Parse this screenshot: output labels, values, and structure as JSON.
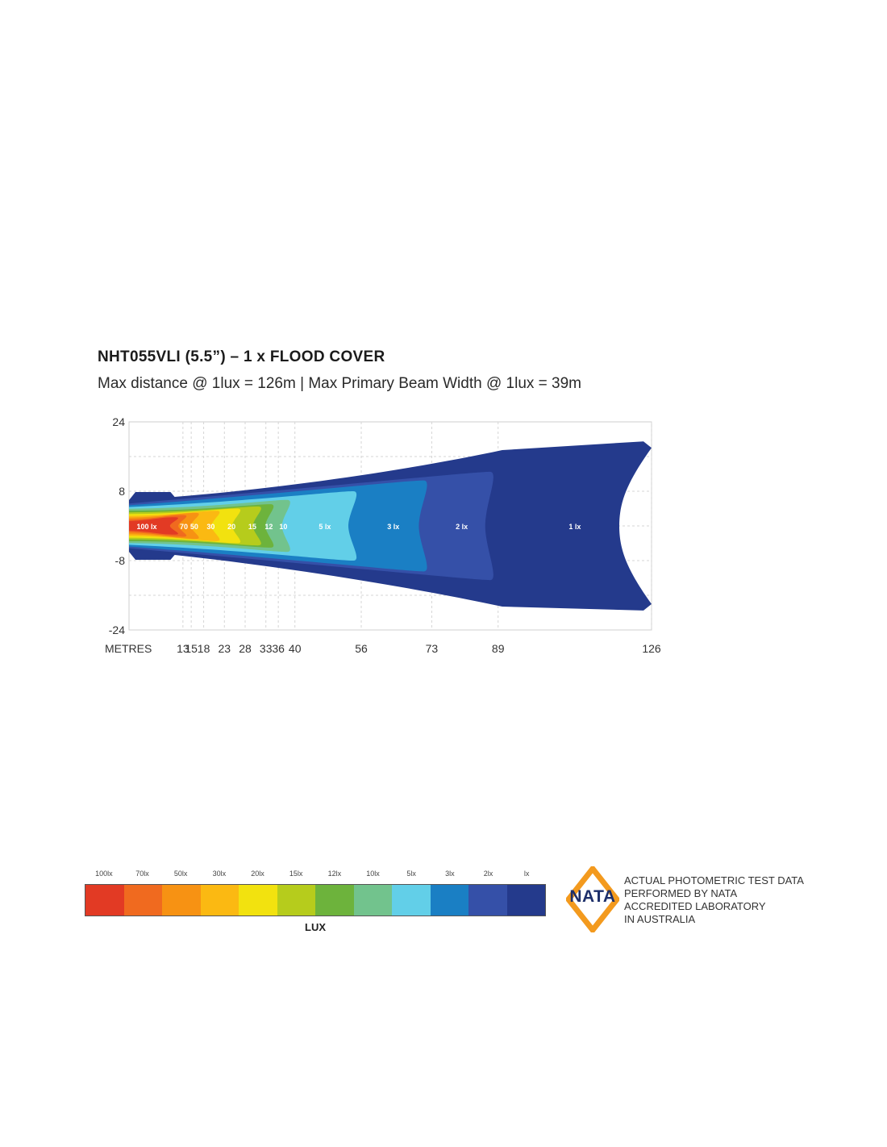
{
  "header": {
    "title": "NHT055VLI (5.5”) – 1 x FLOOD COVER",
    "subtitle": "Max distance @ 1lux = 126m | Max Primary Beam Width @ 1lux = 39m"
  },
  "chart_data": {
    "type": "heatmap",
    "x_axis_label": "METRES",
    "x_ticks": [
      13,
      15,
      18,
      23,
      28,
      33,
      36,
      40,
      56,
      73,
      89,
      126
    ],
    "y_ticks": [
      24,
      8,
      -8,
      -24
    ],
    "ylim": [
      -24,
      24
    ],
    "xlim": [
      0,
      126
    ],
    "grid": true,
    "contours": [
      {
        "label": "1 lx",
        "level_lux": 1,
        "color": "#243a8c",
        "peak_x": 126,
        "half_width": 19.5
      },
      {
        "label": "2 lx",
        "level_lux": 2,
        "color": "#3550a8",
        "peak_x": 89,
        "half_width": 12.5
      },
      {
        "label": "3 lx",
        "level_lux": 3,
        "color": "#1a7fc4",
        "peak_x": 73,
        "half_width": 10.5
      },
      {
        "label": "5 lx",
        "level_lux": 5,
        "color": "#62cfe8",
        "peak_x": 56,
        "half_width": 8
      },
      {
        "label": "10",
        "level_lux": 10,
        "color": "#72c38d",
        "peak_x": 40,
        "half_width": 6
      },
      {
        "label": "12",
        "level_lux": 12,
        "color": "#6db33c",
        "peak_x": 36,
        "half_width": 5
      },
      {
        "label": "15",
        "level_lux": 15,
        "color": "#b6cc1c",
        "peak_x": 33,
        "half_width": 4.5
      },
      {
        "label": "20",
        "level_lux": 20,
        "color": "#f2e20f",
        "peak_x": 28,
        "half_width": 4
      },
      {
        "label": "30",
        "level_lux": 30,
        "color": "#fbb912",
        "peak_x": 23,
        "half_width": 3.5
      },
      {
        "label": "50",
        "level_lux": 50,
        "color": "#f79213",
        "peak_x": 18,
        "half_width": 3
      },
      {
        "label": "70",
        "level_lux": 70,
        "color": "#f06a1f",
        "peak_x": 15,
        "half_width": 2.5
      },
      {
        "label": "100 lx",
        "level_lux": 100,
        "color": "#e23a24",
        "peak_x": 13,
        "half_width": 2
      }
    ]
  },
  "legend": {
    "unit_label": "LUX",
    "items": [
      {
        "label": "100lx",
        "color": "#e23a24"
      },
      {
        "label": "70lx",
        "color": "#f06a1f"
      },
      {
        "label": "50lx",
        "color": "#f79213"
      },
      {
        "label": "30lx",
        "color": "#fbb912"
      },
      {
        "label": "20lx",
        "color": "#f2e20f"
      },
      {
        "label": "15lx",
        "color": "#b6cc1c"
      },
      {
        "label": "12lx",
        "color": "#6db33c"
      },
      {
        "label": "10lx",
        "color": "#72c38d"
      },
      {
        "label": "5lx",
        "color": "#62cfe8"
      },
      {
        "label": "3lx",
        "color": "#1a7fc4"
      },
      {
        "label": "2lx",
        "color": "#3550a8"
      },
      {
        "label": "lx",
        "color": "#243a8c"
      }
    ]
  },
  "nata": {
    "logo_text": "NATA",
    "logo_color": "#f39a1e",
    "lines": [
      "ACTUAL PHOTOMETRIC TEST DATA",
      "PERFORMED BY NATA",
      "ACCREDITED LABORATORY",
      "IN AUSTRALIA"
    ]
  }
}
